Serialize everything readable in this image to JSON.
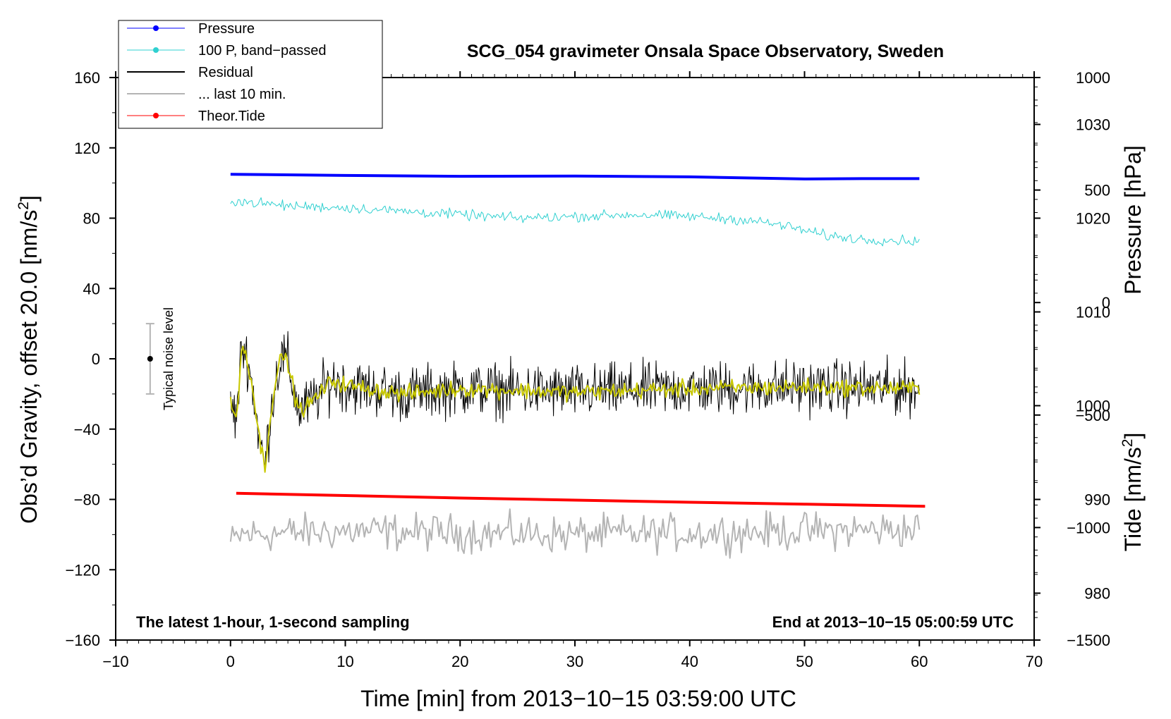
{
  "chart_data": {
    "type": "line",
    "title": "SCG_054 gravimeter Onsala Space Observatory, Sweden",
    "xlabel": "Time [min] from 2013−10−15 03:59:00 UTC",
    "ylabel": "Obs’d Gravity, offset 20.0 [nm/s",
    "ylabel_sup": "2",
    "ylabel_end": "]",
    "y2label": "Pressure [hPa]",
    "y3label": "Tide [nm/s",
    "y3label_sup": "2",
    "y3label_end": "]",
    "xlim": [
      -10,
      70
    ],
    "ylim": [
      -160,
      160
    ],
    "pressure_axis": {
      "range": [
        975,
        1035
      ]
    },
    "tide_axis": {
      "range": [
        -1500,
        1000
      ]
    },
    "x_ticks": [
      "−10",
      "0",
      "10",
      "20",
      "30",
      "40",
      "50",
      "60",
      "70"
    ],
    "x_tick_values": [
      -10,
      0,
      10,
      20,
      30,
      40,
      50,
      60,
      70
    ],
    "y_ticks": [
      "160",
      "120",
      "80",
      "40",
      "0",
      "−40",
      "−80",
      "−120",
      "−160"
    ],
    "y_tick_values": [
      160,
      120,
      80,
      40,
      0,
      -40,
      -80,
      -120,
      -160
    ],
    "pressure_ticks": [
      "1030",
      "1020",
      "1010",
      "1000",
      "990",
      "980"
    ],
    "pressure_tick_values": [
      1030,
      1020,
      1010,
      1000,
      990,
      980
    ],
    "tide_ticks": [
      "1000",
      "500",
      "0",
      "−500",
      "−1000",
      "−1500"
    ],
    "tide_tick_values": [
      1000,
      500,
      0,
      -500,
      -1000,
      -1500
    ],
    "annotation_left": "The latest 1-hour, 1-second sampling",
    "annotation_right": "End at 2013−10−15 05:00:59 UTC",
    "noise_label": "Typical noise level",
    "noise_bar": {
      "x": -7,
      "center": 0,
      "half_range": 20
    },
    "legend": [
      {
        "label": "Pressure",
        "color": "#0000ff",
        "marker": true,
        "width": 1
      },
      {
        "label": "100 P, band−passed",
        "color": "#30d0d0",
        "marker": true,
        "width": 1
      },
      {
        "label": "Residual",
        "color": "#000000",
        "marker": false,
        "width": 2
      },
      {
        "label": "... last 10 min.",
        "color": "#b4b4b4",
        "marker": false,
        "width": 2
      },
      {
        "label": "Theor.Tide",
        "color": "#ff0000",
        "marker": true,
        "width": 1
      }
    ],
    "series": [
      {
        "name": "Pressure",
        "color": "#0000ff",
        "width": 4,
        "x": [
          0,
          10,
          20,
          30,
          40,
          50,
          55,
          60
        ],
        "y": [
          105,
          104.3,
          103.8,
          104,
          103.5,
          102.3,
          102.5,
          102.5
        ]
      },
      {
        "name": "100 P, band−passed",
        "color": "#30d0d0",
        "width": 1,
        "noise": 2.5,
        "x": [
          0,
          5,
          10,
          15,
          20,
          25,
          30,
          35,
          40,
          45,
          48,
          52,
          55,
          60
        ],
        "y": [
          90,
          87,
          86,
          84,
          82,
          80,
          81,
          82,
          81,
          79,
          76,
          70,
          68,
          67
        ]
      },
      {
        "name": "Residual",
        "color": "#000000",
        "width": 1,
        "noise": 13,
        "x": [
          0,
          0.5,
          1,
          1.5,
          2,
          2.5,
          3,
          3.5,
          4,
          4.5,
          5,
          5.5,
          6,
          7,
          8,
          9,
          10,
          15,
          20,
          30,
          40,
          50,
          60
        ],
        "y": [
          -25,
          -35,
          8,
          0,
          -20,
          -45,
          -62,
          -30,
          -10,
          2,
          -2,
          -18,
          -30,
          -25,
          -18,
          -12,
          -15,
          -20,
          -17,
          -19,
          -17,
          -16,
          -17
        ]
      },
      {
        "name": "smoothed",
        "color": "#c8c800",
        "width": 2,
        "noise": 4,
        "x": [
          0,
          0.5,
          1,
          1.5,
          2,
          2.5,
          3,
          3.5,
          4,
          4.5,
          5,
          5.5,
          6,
          7,
          8,
          9,
          10,
          15,
          20,
          30,
          40,
          50,
          60
        ],
        "y": [
          -25,
          -35,
          8,
          0,
          -20,
          -45,
          -62,
          -30,
          -10,
          2,
          -2,
          -18,
          -30,
          -25,
          -18,
          -12,
          -15,
          -20,
          -17,
          -19,
          -17,
          -16,
          -17
        ]
      },
      {
        "name": "... last 10 min.",
        "color": "#b4b4b4",
        "width": 2,
        "noise": 9,
        "x": [
          0,
          1,
          10,
          30,
          50,
          60
        ],
        "y": [
          -105,
          -100,
          -98,
          -100,
          -98,
          -97
        ]
      },
      {
        "name": "Theor.Tide",
        "color": "#ff0000",
        "width": 4,
        "x": [
          0.5,
          10,
          20,
          30,
          40,
          50,
          60.5
        ],
        "y": [
          -76.5,
          -77.8,
          -79.2,
          -80.4,
          -81.6,
          -82.7,
          -83.9
        ]
      }
    ]
  }
}
